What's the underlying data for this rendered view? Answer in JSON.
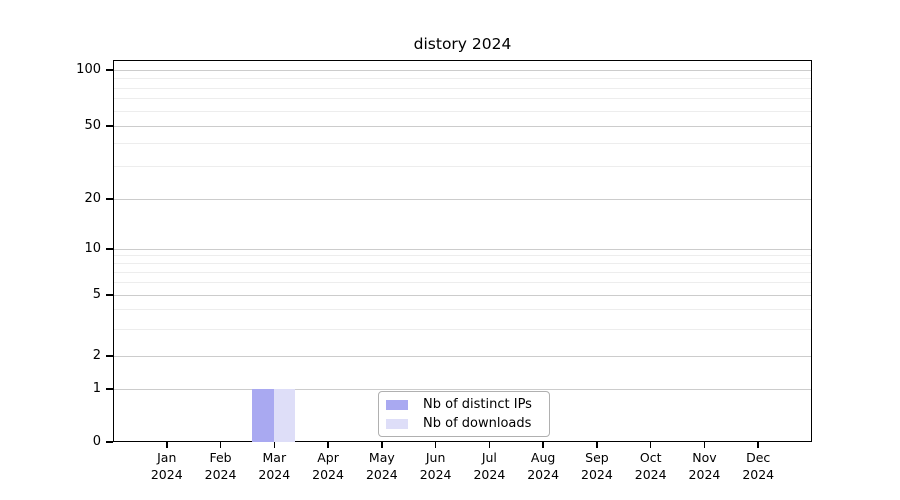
{
  "chart_data": {
    "type": "bar",
    "title": "distory 2024",
    "categories": [
      "Jan 2024",
      "Feb 2024",
      "Mar 2024",
      "Apr 2024",
      "May 2024",
      "Jun 2024",
      "Jul 2024",
      "Aug 2024",
      "Sep 2024",
      "Oct 2024",
      "Nov 2024",
      "Dec 2024"
    ],
    "series": [
      {
        "name": "Nb of distinct IPs",
        "color": "#a9a9f1",
        "values": [
          0,
          0,
          1,
          0,
          0,
          0,
          0,
          0,
          0,
          0,
          0,
          0
        ]
      },
      {
        "name": "Nb of downloads",
        "color": "#dedef8",
        "values": [
          0,
          0,
          1,
          0,
          0,
          0,
          0,
          0,
          0,
          0,
          0,
          0
        ]
      }
    ],
    "xlabel": "",
    "ylabel": "",
    "y_axis": {
      "scale": "symlog",
      "tick_values": [
        0,
        1,
        2,
        5,
        10,
        20,
        50,
        100
      ],
      "tick_labels": [
        "0",
        "1",
        "2",
        "5",
        "10",
        "20",
        "50",
        "100"
      ],
      "minor_gridline_values": [
        3,
        4,
        6,
        7,
        8,
        9,
        30,
        40,
        60,
        70,
        80,
        90
      ],
      "ylim": [
        0,
        110
      ],
      "grid": true
    },
    "legend": {
      "position": "lower center inside plot"
    },
    "colors": {
      "major_grid": "#cccccc",
      "minor_grid": "#ededed",
      "spine": "#000000",
      "background": "#ffffff",
      "legend_border": "#b0b0b0"
    }
  }
}
